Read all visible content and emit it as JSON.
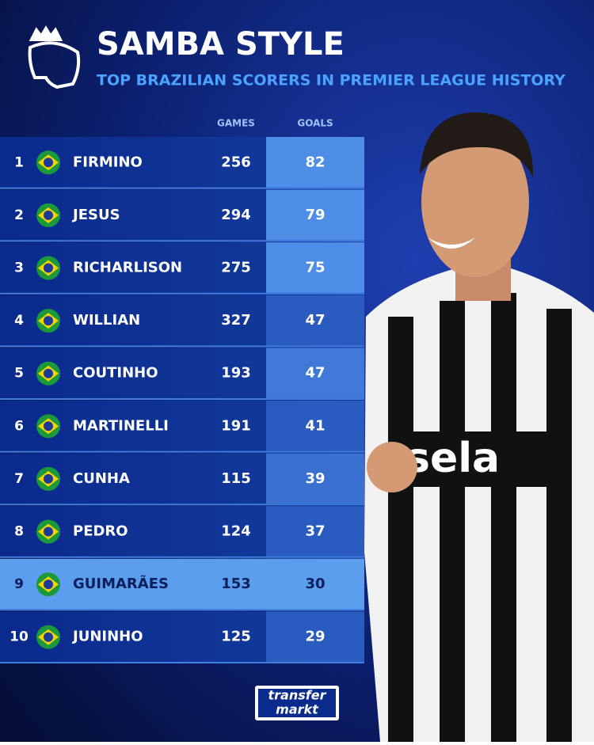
{
  "header": {
    "title": "SAMBA STYLE",
    "subtitle": "TOP BRAZILIAN SCORERS IN PREMIER LEAGUE HISTORY"
  },
  "table": {
    "columns": [
      "GAMES",
      "GOALS"
    ],
    "rows": [
      [
        "1",
        "FIRMINO",
        "256",
        "82"
      ],
      [
        "2",
        "JESUS",
        "294",
        "79"
      ],
      [
        "3",
        "RICHARLISON",
        "275",
        "75"
      ],
      [
        "4",
        "WILLIAN",
        "327",
        "47"
      ],
      [
        "5",
        "COUTINHO",
        "193",
        "47"
      ],
      [
        "6",
        "MARTINELLI",
        "191",
        "41"
      ],
      [
        "7",
        "CUNHA",
        "115",
        "39"
      ],
      [
        "8",
        "PEDRO",
        "124",
        "37"
      ],
      [
        "9",
        "GUIMARÃES",
        "153",
        "30"
      ],
      [
        "10",
        "JUNINHO",
        "125",
        "29"
      ]
    ]
  },
  "footer": {
    "logo_top": "transfer",
    "logo_bottom": "markt"
  }
}
